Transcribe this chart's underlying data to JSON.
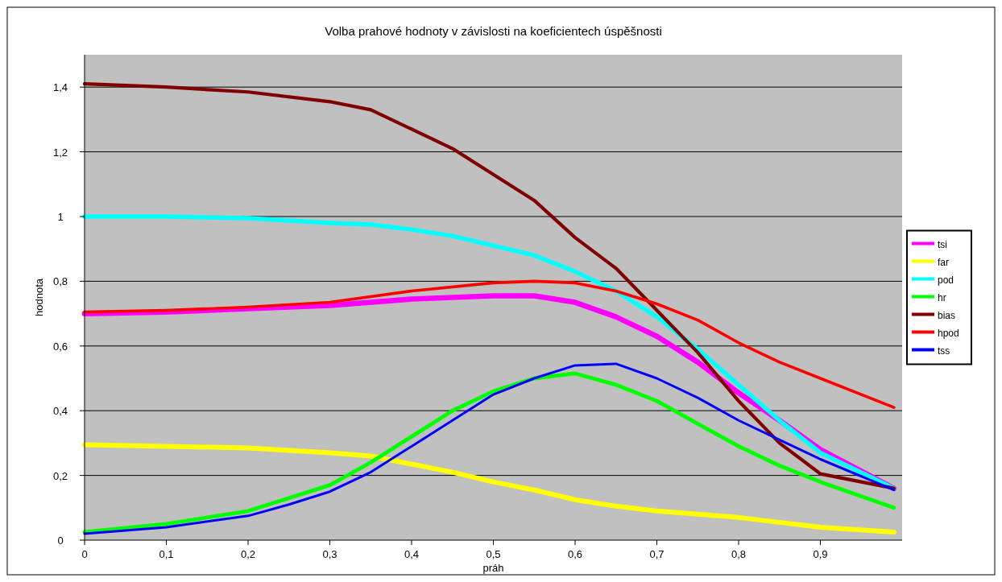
{
  "chart_data": {
    "type": "line",
    "title": "Volba prahové hodnoty v závislosti na koeficientech úspěšnosti",
    "xlabel": "práh",
    "ylabel": "hodnota",
    "xlim": [
      0,
      1
    ],
    "ylim": [
      0,
      1.5
    ],
    "xticks": [
      0,
      {
        "value": 0.1,
        "label": "0,1"
      },
      {
        "value": 0.2,
        "label": "0,2"
      },
      {
        "value": 0.3,
        "label": "0,3"
      },
      {
        "value": 0.4,
        "label": "0,4"
      },
      {
        "value": 0.5,
        "label": "0,5"
      },
      {
        "value": 0.6,
        "label": "0,6"
      },
      {
        "value": 0.7,
        "label": "0,7"
      },
      {
        "value": 0.8,
        "label": "0,8"
      },
      {
        "value": 0.9,
        "label": "0,9"
      }
    ],
    "yticks": [
      0,
      {
        "value": 0.2,
        "label": "0,2"
      },
      {
        "value": 0.4,
        "label": "0,4"
      },
      {
        "value": 0.6,
        "label": "0,6"
      },
      {
        "value": 0.8,
        "label": "0,8"
      },
      1,
      {
        "value": 1.2,
        "label": "1,2"
      },
      {
        "value": 1.4,
        "label": "1,4"
      }
    ],
    "grid": "y",
    "legend": "right",
    "marker": "none",
    "line_style": "solid",
    "series": [
      {
        "name": "tsi",
        "color": "#ff00ff",
        "x": [
          0,
          0.1,
          0.2,
          0.3,
          0.4,
          0.5,
          0.55,
          0.6,
          0.65,
          0.7,
          0.75,
          0.8,
          0.85,
          0.9,
          0.99
        ],
        "values": [
          0.7,
          0.705,
          0.715,
          0.725,
          0.745,
          0.755,
          0.755,
          0.735,
          0.69,
          0.63,
          0.55,
          0.455,
          0.37,
          0.28,
          0.16
        ]
      },
      {
        "name": "far",
        "color": "#ffff00",
        "x": [
          0,
          0.1,
          0.2,
          0.3,
          0.35,
          0.4,
          0.45,
          0.5,
          0.55,
          0.6,
          0.65,
          0.7,
          0.75,
          0.8,
          0.85,
          0.9,
          0.99
        ],
        "values": [
          0.295,
          0.29,
          0.285,
          0.27,
          0.26,
          0.235,
          0.21,
          0.18,
          0.155,
          0.125,
          0.105,
          0.09,
          0.08,
          0.07,
          0.055,
          0.04,
          0.025
        ]
      },
      {
        "name": "pod",
        "color": "#00ffff",
        "x": [
          0,
          0.1,
          0.2,
          0.3,
          0.35,
          0.4,
          0.45,
          0.5,
          0.55,
          0.6,
          0.65,
          0.7,
          0.75,
          0.8,
          0.85,
          0.9,
          0.99
        ],
        "values": [
          1.0,
          1.0,
          0.995,
          0.98,
          0.975,
          0.96,
          0.94,
          0.91,
          0.88,
          0.83,
          0.77,
          0.69,
          0.59,
          0.48,
          0.37,
          0.27,
          0.16
        ]
      },
      {
        "name": "hr",
        "color": "#00ff00",
        "x": [
          0,
          0.1,
          0.2,
          0.25,
          0.3,
          0.35,
          0.4,
          0.45,
          0.5,
          0.55,
          0.6,
          0.65,
          0.7,
          0.75,
          0.8,
          0.85,
          0.9,
          0.99
        ],
        "values": [
          0.025,
          0.05,
          0.09,
          0.13,
          0.17,
          0.24,
          0.32,
          0.4,
          0.46,
          0.5,
          0.515,
          0.48,
          0.43,
          0.36,
          0.29,
          0.23,
          0.18,
          0.1
        ]
      },
      {
        "name": "bias",
        "color": "#800000",
        "x": [
          0,
          0.1,
          0.2,
          0.3,
          0.35,
          0.4,
          0.45,
          0.5,
          0.55,
          0.6,
          0.65,
          0.7,
          0.75,
          0.8,
          0.85,
          0.9,
          0.99
        ],
        "values": [
          1.41,
          1.4,
          1.385,
          1.355,
          1.33,
          1.27,
          1.21,
          1.13,
          1.05,
          0.935,
          0.84,
          0.71,
          0.58,
          0.43,
          0.3,
          0.205,
          0.16
        ]
      },
      {
        "name": "hpod",
        "color": "#ff0000",
        "x": [
          0,
          0.1,
          0.2,
          0.3,
          0.4,
          0.5,
          0.55,
          0.6,
          0.65,
          0.7,
          0.75,
          0.8,
          0.85,
          0.9,
          0.99
        ],
        "values": [
          0.705,
          0.71,
          0.72,
          0.735,
          0.77,
          0.795,
          0.8,
          0.795,
          0.77,
          0.73,
          0.68,
          0.61,
          0.55,
          0.5,
          0.41
        ]
      },
      {
        "name": "tss",
        "color": "#0000ff",
        "x": [
          0,
          0.1,
          0.2,
          0.25,
          0.3,
          0.35,
          0.4,
          0.45,
          0.5,
          0.55,
          0.6,
          0.65,
          0.7,
          0.75,
          0.8,
          0.85,
          0.9,
          0.99
        ],
        "values": [
          0.02,
          0.04,
          0.075,
          0.11,
          0.15,
          0.21,
          0.29,
          0.37,
          0.45,
          0.5,
          0.54,
          0.545,
          0.5,
          0.44,
          0.37,
          0.31,
          0.25,
          0.155
        ]
      }
    ]
  }
}
